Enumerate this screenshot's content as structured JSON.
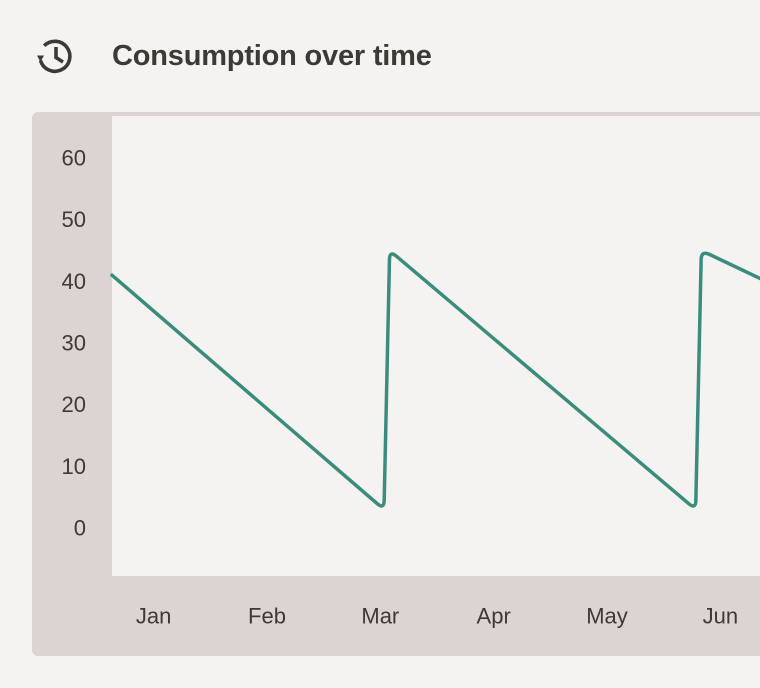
{
  "header": {
    "title": "Consumption over time",
    "icon": "history-icon"
  },
  "colors": {
    "line": "#3a8c7c",
    "panel": "#dcd4d3",
    "plot_background": "#f5f2f2",
    "text": "#3d3a35"
  },
  "chart_data": {
    "type": "line",
    "title": "Consumption over time",
    "xlabel": "",
    "ylabel": "",
    "x_ticks": [
      "Jan",
      "Feb",
      "Mar",
      "Apr",
      "May",
      "Jun"
    ],
    "y_ticks": [
      60,
      50,
      40,
      30,
      20,
      10,
      0
    ],
    "ylim": [
      0,
      60
    ],
    "xlim": [
      -0.35,
      5.65
    ],
    "grid": false,
    "series": [
      {
        "points": [
          {
            "x": -0.35,
            "y": 41
          },
          {
            "x": 2.05,
            "y": 3
          },
          {
            "x": 2.1,
            "y": 45
          },
          {
            "x": 4.8,
            "y": 3
          },
          {
            "x": 4.85,
            "y": 45
          },
          {
            "x": 5.65,
            "y": 38
          }
        ]
      }
    ]
  }
}
